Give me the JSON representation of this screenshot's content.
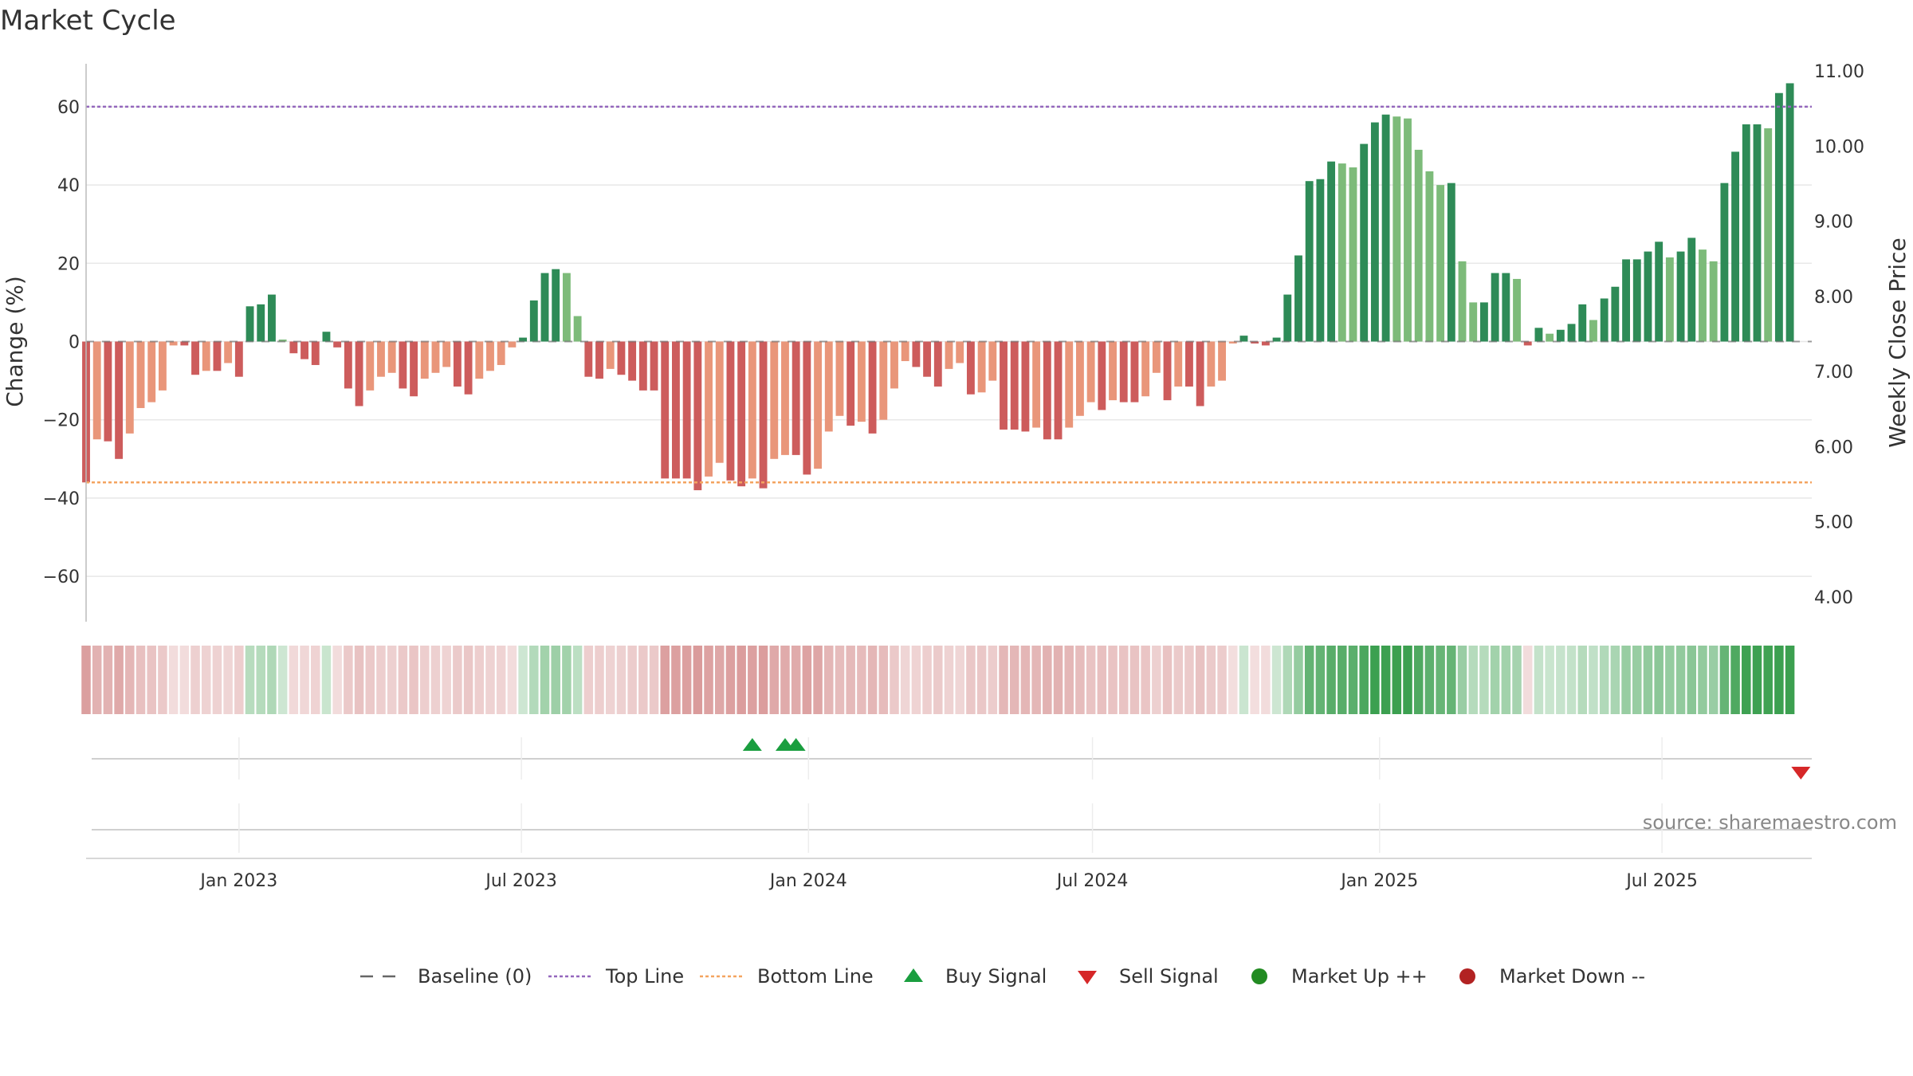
{
  "title": "Market Cycle",
  "source": "source: sharemaestro.com",
  "chart_data": {
    "type": "bar",
    "title": "Market Cycle",
    "ylabel": "Change (%)",
    "y2label": "Weekly Close Price",
    "ylim": [
      -72,
      72
    ],
    "y_ticks": [
      60,
      40,
      20,
      0,
      -20,
      -40,
      -60
    ],
    "y_tick_labels": [
      "60",
      "40",
      "20",
      "0",
      "−20",
      "−40",
      "−60"
    ],
    "y2lim": [
      3.65,
      11.15
    ],
    "y2_ticks": [
      "11.00",
      "10.00",
      "9.00",
      "8.00",
      "7.00",
      "6.00",
      "5.00",
      "4.00"
    ],
    "x_start": "2022-09-25",
    "x_end": "2025-10-05",
    "x_ticks": [
      {
        "date": "2023-01-01",
        "label": "Jan 2023"
      },
      {
        "date": "2023-07-01",
        "label": "Jul 2023"
      },
      {
        "date": "2024-01-01",
        "label": "Jan 2024"
      },
      {
        "date": "2024-07-01",
        "label": "Jul 2024"
      },
      {
        "date": "2025-01-01",
        "label": "Jan 2025"
      },
      {
        "date": "2025-07-01",
        "label": "Jul 2025"
      }
    ],
    "first_week": "2022-09-25",
    "week_step_days": 7,
    "values": [
      -36,
      -25,
      -25.5,
      -30,
      -23.5,
      -17,
      -15.5,
      -12.5,
      -1,
      -1,
      -8.5,
      -7.5,
      -7.5,
      -5.5,
      -9,
      9,
      9.5,
      12,
      0.5,
      -3,
      -4.5,
      -6,
      2.5,
      -1.5,
      -12,
      -16.5,
      -12.5,
      -9,
      -8,
      -12,
      -14,
      -9.5,
      -8,
      -6.5,
      -11.5,
      -13.5,
      -9.5,
      -7.5,
      -6,
      -1.5,
      1,
      10.5,
      17.5,
      18.5,
      17.5,
      6.5,
      -9,
      -9.5,
      -7,
      -8.5,
      -10,
      -12.5,
      -12.5,
      -35,
      -35,
      -35,
      -38,
      -34.5,
      -31,
      -35.5,
      -37,
      -35,
      -37.5,
      -30,
      -29,
      -29,
      -34,
      -32.5,
      -23,
      -19,
      -21.5,
      -20.5,
      -23.5,
      -20,
      -12,
      -5,
      -6.5,
      -9,
      -11.5,
      -7,
      -5.5,
      -13.5,
      -13,
      -10,
      -22.5,
      -22.5,
      -23,
      -22,
      -25,
      -25,
      -22,
      -19,
      -15.5,
      -17.5,
      -15,
      -15.5,
      -15.5,
      -14,
      -8,
      -15,
      -11.5,
      -11.5,
      -16.5,
      -11.5,
      -10,
      -0.5,
      1.5,
      -0.5,
      -1,
      1,
      12,
      22,
      41,
      41.5,
      46,
      45.5,
      44.5,
      50.5,
      56,
      58,
      57.5,
      57,
      49,
      43.5,
      40,
      40.5,
      20.5,
      10,
      10,
      17.5,
      17.5,
      16,
      -1,
      3.5,
      2,
      3,
      4.5,
      9.5,
      5.5,
      11,
      14,
      21,
      21,
      23,
      25.5,
      21.5,
      23,
      26.5,
      23.5,
      20.5,
      40.5,
      48.5,
      55.5,
      55.5,
      54.5,
      63.5,
      66
    ],
    "top_line": 60,
    "bottom_line": -36,
    "buy_signals": [
      "2023-11-26",
      "2023-12-17",
      "2023-12-24"
    ],
    "sell_signals": [
      "2025-09-28"
    ],
    "colors": {
      "strong_up": "#2e8b57",
      "weak_up": "#7dbb7a",
      "strong_down": "#cd5c5c",
      "weak_down": "#e9967a",
      "top_line": "#9467bd",
      "bottom_line": "#f4a460",
      "buy": "#1a9e3f",
      "sell": "#d62728",
      "market_up": "#228b22",
      "market_down": "#b22222",
      "baseline": "#666666"
    },
    "legend": {
      "position": "bottom",
      "items": [
        {
          "label": "Baseline (0)",
          "marker": "dashed-line-gray"
        },
        {
          "label": "Top Line",
          "marker": "dotted-line-purple"
        },
        {
          "label": "Bottom Line",
          "marker": "dotted-line-orange"
        },
        {
          "label": "Buy Signal",
          "marker": "up-triangle-green"
        },
        {
          "label": "Sell Signal",
          "marker": "down-triangle-red"
        },
        {
          "label": "Market Up ++",
          "marker": "dot-green"
        },
        {
          "label": "Market Down --",
          "marker": "dot-red"
        }
      ]
    }
  }
}
